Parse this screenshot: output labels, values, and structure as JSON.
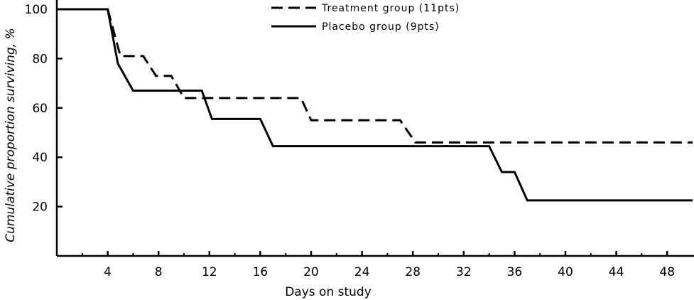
{
  "chart_data": {
    "type": "line",
    "title": "",
    "xlabel": "Days on study",
    "ylabel": "Cumulative proportion surviving, %",
    "xlim": [
      0,
      50
    ],
    "ylim": [
      0,
      100
    ],
    "x_ticks": [
      4,
      8,
      12,
      16,
      20,
      24,
      28,
      32,
      36,
      40,
      44,
      48
    ],
    "y_ticks": [
      20,
      40,
      60,
      80,
      100
    ],
    "grid": false,
    "legend_position": "top-center",
    "step": true,
    "series": [
      {
        "name": "Treatment group (11pts)",
        "line_style": "dashed",
        "color": "#000000",
        "points": [
          [
            0,
            100
          ],
          [
            4,
            100
          ],
          [
            5,
            81
          ],
          [
            6.8,
            81
          ],
          [
            7.8,
            73
          ],
          [
            9,
            73
          ],
          [
            10,
            64
          ],
          [
            19.2,
            64
          ],
          [
            20,
            55
          ],
          [
            27,
            55
          ],
          [
            28.2,
            46
          ],
          [
            50,
            46
          ]
        ]
      },
      {
        "name": "Placebo group (9pts)",
        "line_style": "solid",
        "color": "#000000",
        "points": [
          [
            0,
            100
          ],
          [
            4,
            100
          ],
          [
            4.8,
            78
          ],
          [
            6,
            67
          ],
          [
            11.4,
            67
          ],
          [
            12.2,
            55.5
          ],
          [
            16,
            55.5
          ],
          [
            17,
            44.5
          ],
          [
            34,
            44.5
          ],
          [
            35,
            34
          ],
          [
            36,
            34
          ],
          [
            37,
            22.5
          ],
          [
            50,
            22.5
          ]
        ]
      }
    ]
  }
}
